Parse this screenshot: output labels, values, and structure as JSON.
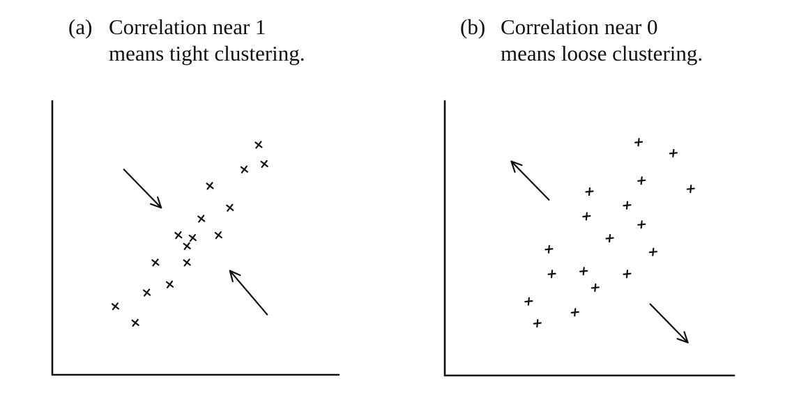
{
  "chart_data": [
    {
      "type": "scatter",
      "panel_label": "(a)",
      "caption_line1": "Correlation near 1",
      "caption_line2": "means tight clustering.",
      "marker": "x",
      "xlim": [
        0,
        100
      ],
      "ylim": [
        0,
        100
      ],
      "points": [
        {
          "x": 22,
          "y": 25
        },
        {
          "x": 29,
          "y": 19
        },
        {
          "x": 33,
          "y": 30
        },
        {
          "x": 36,
          "y": 41
        },
        {
          "x": 41,
          "y": 33
        },
        {
          "x": 44,
          "y": 51
        },
        {
          "x": 47,
          "y": 47
        },
        {
          "x": 47,
          "y": 41
        },
        {
          "x": 49,
          "y": 50
        },
        {
          "x": 52,
          "y": 57
        },
        {
          "x": 55,
          "y": 69
        },
        {
          "x": 58,
          "y": 51
        },
        {
          "x": 62,
          "y": 61
        },
        {
          "x": 67,
          "y": 75
        },
        {
          "x": 72,
          "y": 84
        },
        {
          "x": 74,
          "y": 77
        }
      ],
      "arrows": [
        {
          "from": [
            25,
            75
          ],
          "to": [
            38,
            61
          ]
        },
        {
          "from": [
            75,
            22
          ],
          "to": [
            62,
            38
          ]
        }
      ],
      "grid": false,
      "legend": false
    },
    {
      "type": "scatter",
      "panel_label": "(b)",
      "caption_line1": "Correlation near 0",
      "caption_line2": "means loose clustering.",
      "marker": "+",
      "xlim": [
        0,
        100
      ],
      "ylim": [
        0,
        100
      ],
      "points": [
        {
          "x": 29,
          "y": 27
        },
        {
          "x": 32,
          "y": 19
        },
        {
          "x": 36,
          "y": 46
        },
        {
          "x": 37,
          "y": 37
        },
        {
          "x": 45,
          "y": 23
        },
        {
          "x": 48,
          "y": 38
        },
        {
          "x": 49,
          "y": 58
        },
        {
          "x": 50,
          "y": 67
        },
        {
          "x": 52,
          "y": 32
        },
        {
          "x": 57,
          "y": 50
        },
        {
          "x": 63,
          "y": 62
        },
        {
          "x": 63,
          "y": 37
        },
        {
          "x": 67,
          "y": 85
        },
        {
          "x": 68,
          "y": 71
        },
        {
          "x": 68,
          "y": 55
        },
        {
          "x": 72,
          "y": 45
        },
        {
          "x": 79,
          "y": 81
        },
        {
          "x": 85,
          "y": 68
        }
      ],
      "arrows": [
        {
          "from": [
            36,
            64
          ],
          "to": [
            23,
            78
          ]
        },
        {
          "from": [
            71,
            26
          ],
          "to": [
            84,
            12
          ]
        }
      ],
      "grid": false,
      "legend": false
    }
  ]
}
